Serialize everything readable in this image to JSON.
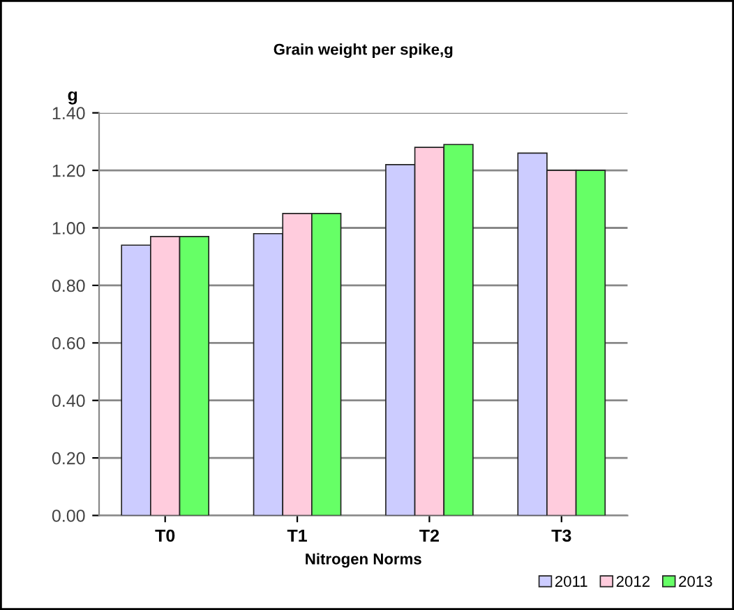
{
  "chart_data": {
    "type": "bar",
    "title": "Grain weight per spike,g",
    "xlabel": "Nitrogen Norms",
    "ylabel": "g",
    "categories": [
      "T0",
      "T1",
      "T2",
      "T3"
    ],
    "series": [
      {
        "name": "2011",
        "color": "#ccccff",
        "values": [
          0.94,
          0.98,
          1.22,
          1.26
        ]
      },
      {
        "name": "2012",
        "color": "#ffccdd",
        "values": [
          0.97,
          1.05,
          1.28,
          1.2
        ]
      },
      {
        "name": "2013",
        "color": "#66ff66",
        "values": [
          0.97,
          1.05,
          1.29,
          1.2
        ]
      }
    ],
    "ylim": [
      0,
      1.4
    ],
    "yticks": [
      {
        "value": 0,
        "label": "0.00"
      },
      {
        "value": 0.2,
        "label": "0.20"
      },
      {
        "value": 0.4,
        "label": "0.40"
      },
      {
        "value": 0.6,
        "label": "0.60"
      },
      {
        "value": 0.8,
        "label": "0.80"
      },
      {
        "value": 1.0,
        "label": "1.00"
      },
      {
        "value": 1.2,
        "label": "1.20"
      },
      {
        "value": 1.4,
        "label": "1.40"
      }
    ],
    "grid": "y",
    "legend": "bottom right"
  }
}
